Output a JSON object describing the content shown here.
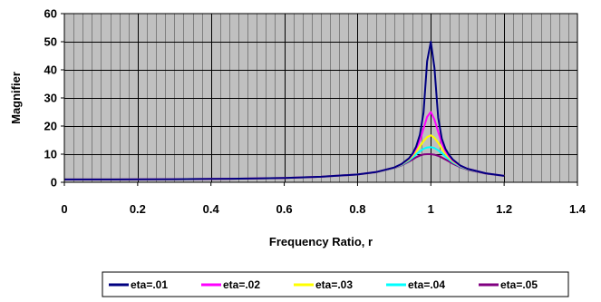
{
  "chart_data": {
    "type": "line",
    "title": "",
    "xlabel": "Frequency Ratio, r",
    "ylabel": "Magnifier",
    "xlim": [
      0,
      1.4
    ],
    "ylim": [
      0,
      60
    ],
    "xticks": [
      0,
      0.2,
      0.4,
      0.6,
      0.8,
      1,
      1.2,
      1.4
    ],
    "xtick_labels": [
      "0",
      "0.2",
      "0.4",
      "0.6",
      "0.8",
      "1",
      "1.2",
      "1.4"
    ],
    "yticks": [
      0,
      10,
      20,
      30,
      40,
      50,
      60
    ],
    "ytick_labels": [
      "0",
      "10",
      "20",
      "30",
      "40",
      "50",
      "60"
    ],
    "grid": true,
    "legend_position": "bottom",
    "plot_background": "#c0c0c0",
    "x": [
      0,
      0.1,
      0.2,
      0.3,
      0.4,
      0.45,
      0.5,
      0.6,
      0.7,
      0.8,
      0.85,
      0.9,
      0.92,
      0.94,
      0.95,
      0.96,
      0.97,
      0.98,
      0.99,
      1.0,
      1.01,
      1.02,
      1.03,
      1.04,
      1.05,
      1.06,
      1.08,
      1.1,
      1.15,
      1.2
    ],
    "series": [
      {
        "name": "eta=.01",
        "color": "#000080",
        "values": [
          1,
          1.01,
          1.04,
          1.1,
          1.19,
          1.25,
          1.33,
          1.56,
          1.96,
          2.78,
          3.6,
          5.26,
          6.49,
          8.49,
          10.2,
          12.7,
          16.9,
          24.7,
          43.1,
          50,
          40.6,
          22.9,
          15.5,
          11.8,
          9.7,
          8.1,
          6.0,
          4.8,
          3.2,
          2.3
        ]
      },
      {
        "name": "eta=.02",
        "color": "#ff00ff",
        "values": [
          1,
          1.01,
          1.04,
          1.1,
          1.19,
          1.25,
          1.33,
          1.56,
          1.96,
          2.78,
          3.6,
          5.23,
          6.43,
          8.34,
          9.9,
          12.0,
          14.9,
          19.1,
          23.3,
          25,
          22.3,
          17.9,
          13.9,
          11.0,
          9.2,
          7.8,
          5.9,
          4.8,
          3.2,
          2.3
        ]
      },
      {
        "name": "eta=.03",
        "color": "#ffff00",
        "values": [
          1,
          1.01,
          1.04,
          1.1,
          1.19,
          1.25,
          1.33,
          1.56,
          1.96,
          2.77,
          3.59,
          5.18,
          6.32,
          8.1,
          9.4,
          11.0,
          12.7,
          14.6,
          16.1,
          16.7,
          15.8,
          14.1,
          12.0,
          10.1,
          8.7,
          7.5,
          5.8,
          4.7,
          3.2,
          2.3
        ]
      },
      {
        "name": "eta=.04",
        "color": "#00ffff",
        "values": [
          1,
          1.01,
          1.04,
          1.1,
          1.19,
          1.25,
          1.33,
          1.56,
          1.96,
          2.77,
          3.58,
          5.12,
          6.17,
          7.75,
          8.8,
          9.9,
          11.0,
          11.9,
          12.4,
          12.5,
          12.2,
          11.4,
          10.4,
          9.2,
          8.1,
          7.1,
          5.6,
          4.6,
          3.2,
          2.3
        ]
      },
      {
        "name": "eta=.05",
        "color": "#800080",
        "values": [
          1,
          1.01,
          1.04,
          1.1,
          1.19,
          1.25,
          1.33,
          1.56,
          1.96,
          2.76,
          3.56,
          5.05,
          6.0,
          7.35,
          8.1,
          8.9,
          9.5,
          9.9,
          10.0,
          10.0,
          9.8,
          9.4,
          8.8,
          8.1,
          7.4,
          6.6,
          5.4,
          4.5,
          3.1,
          2.3
        ]
      }
    ]
  }
}
